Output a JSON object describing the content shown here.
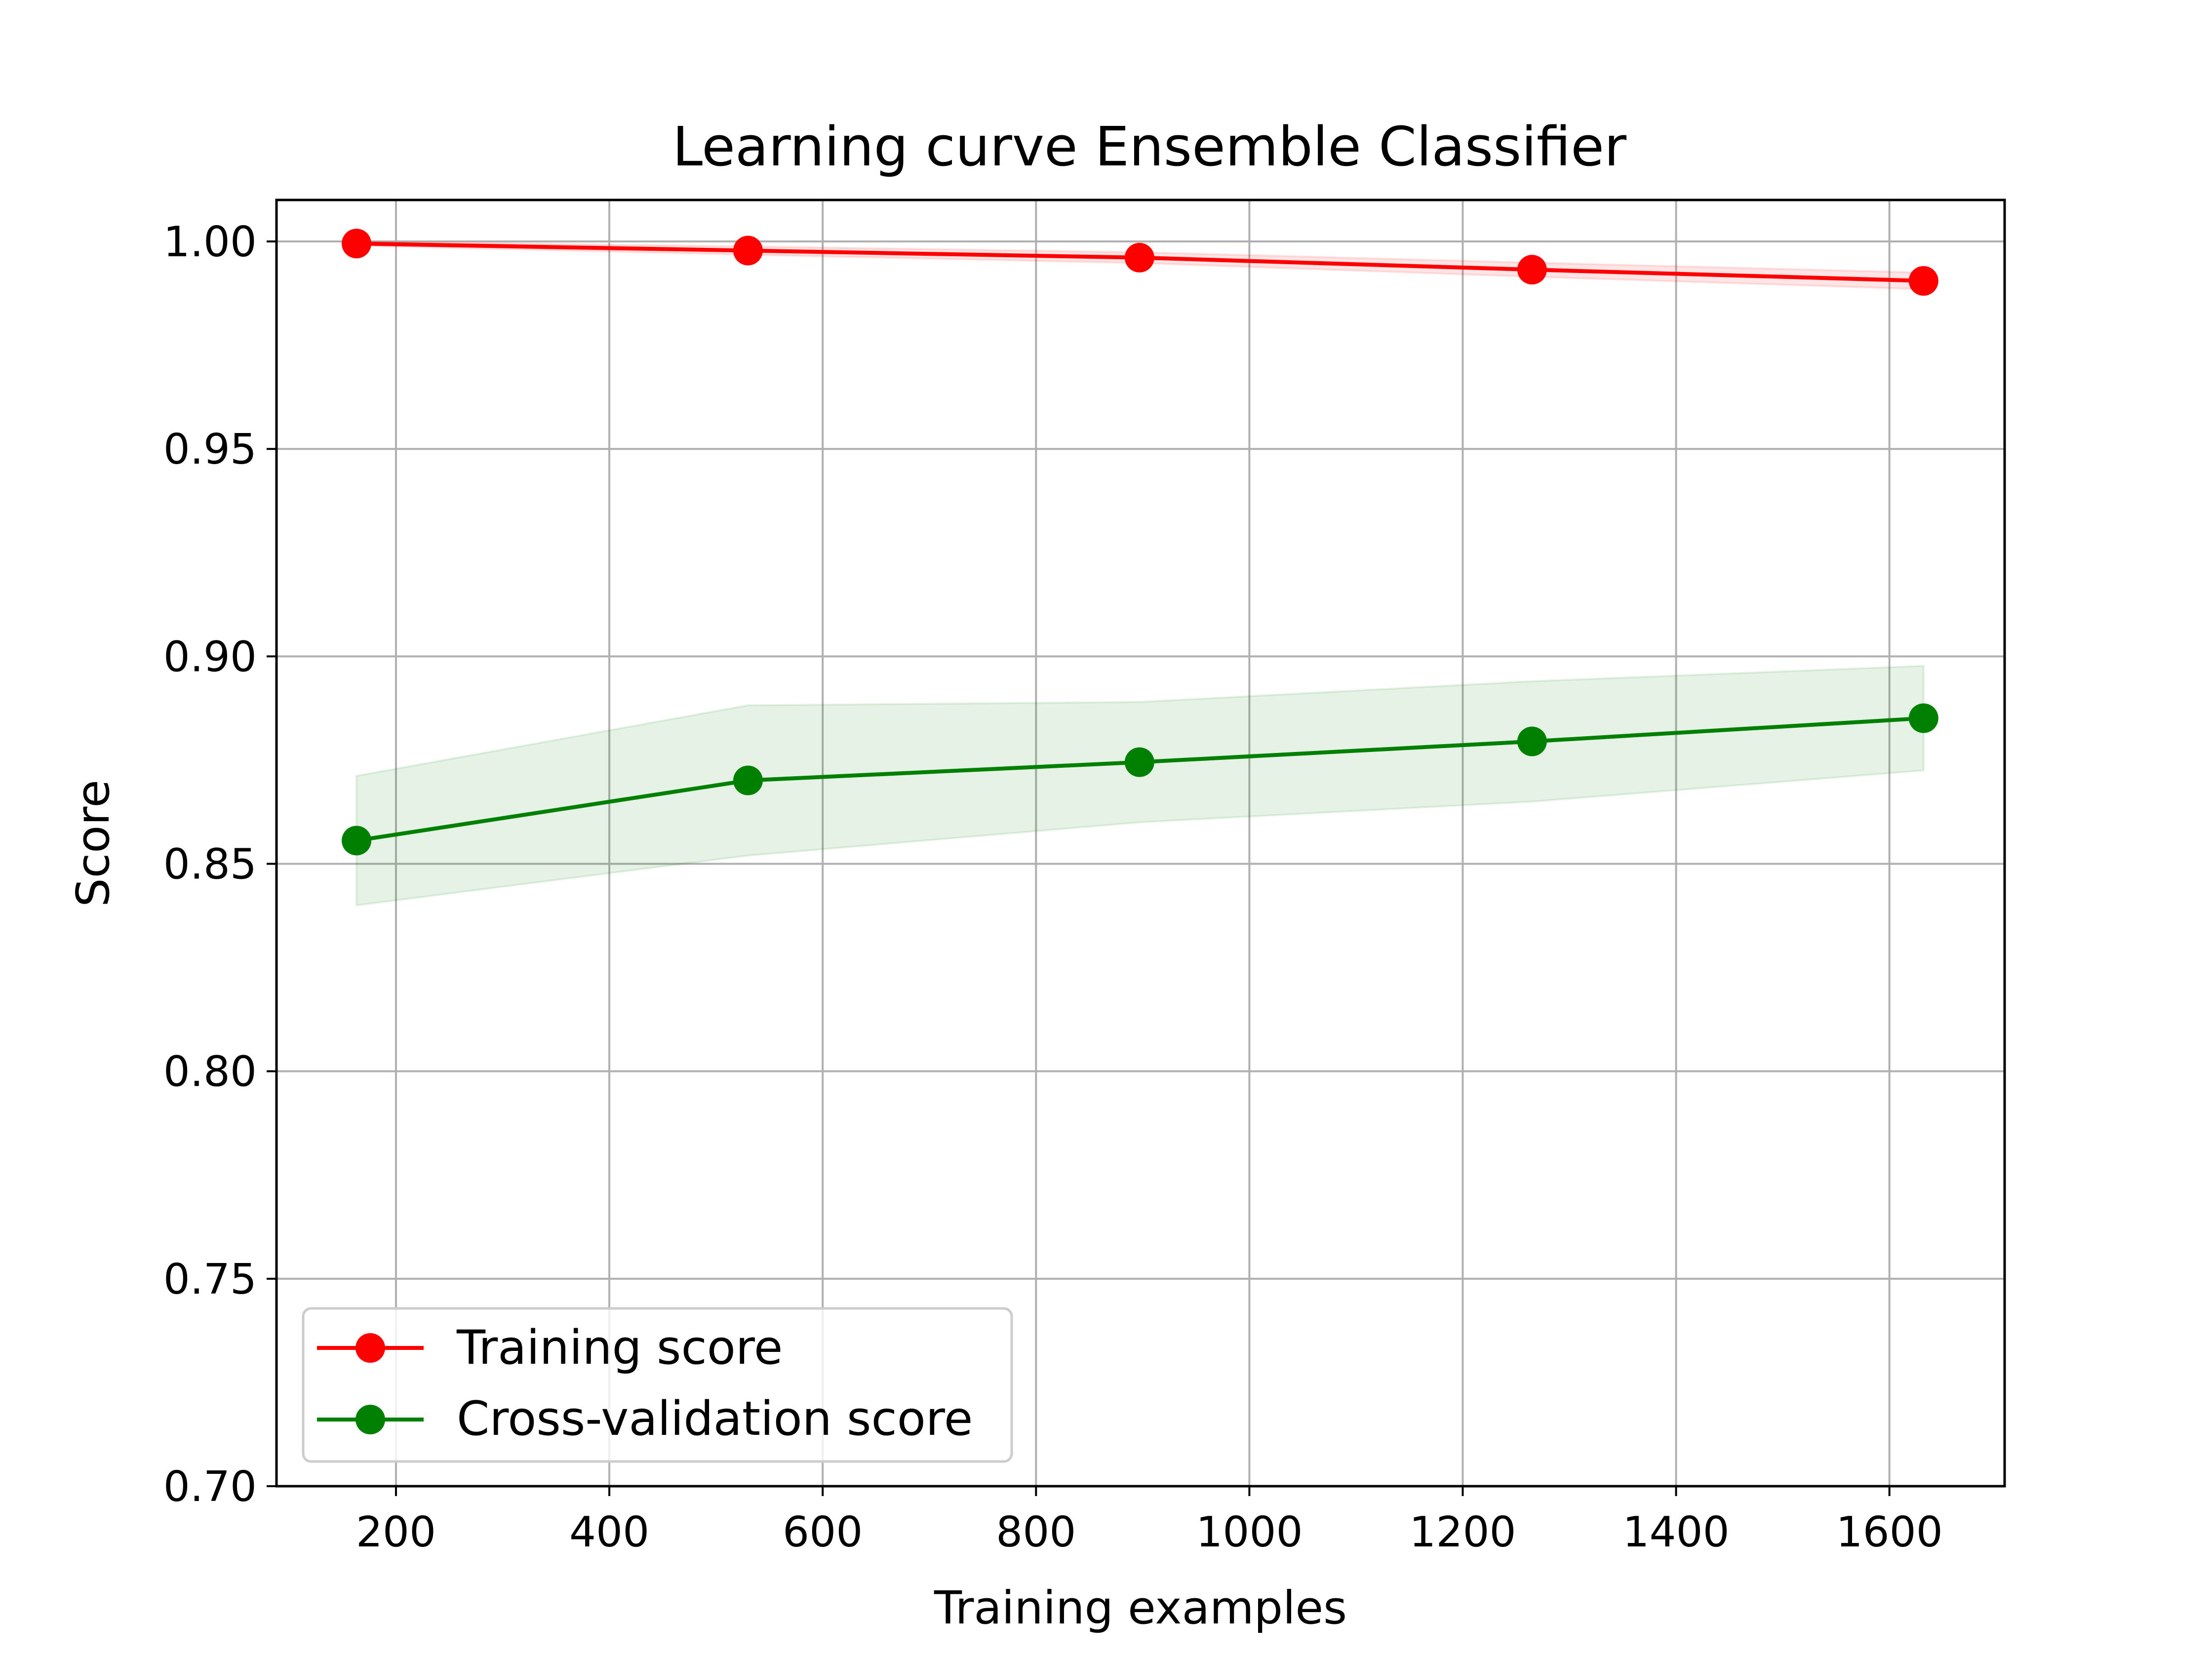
{
  "chart_data": {
    "type": "line",
    "title": "Learning curve Ensemble Classifier",
    "xlabel": "Training examples",
    "ylabel": "Score",
    "xlim": [
      88,
      1708
    ],
    "ylim": [
      0.7,
      1.01
    ],
    "xticks": [
      200,
      400,
      600,
      800,
      1000,
      1200,
      1400,
      1600
    ],
    "xtick_labels": [
      "200",
      "400",
      "600",
      "800",
      "1000",
      "1200",
      "1400",
      "1600"
    ],
    "yticks": [
      0.7,
      0.75,
      0.8,
      0.85,
      0.9,
      0.95,
      1.0
    ],
    "ytick_labels": [
      "0.70",
      "0.75",
      "0.80",
      "0.85",
      "0.90",
      "0.95",
      "1.00"
    ],
    "grid": true,
    "legend_position": "lower-left",
    "x": [
      163,
      530,
      897,
      1265,
      1632
    ],
    "series": [
      {
        "name": "Training score",
        "color": "#ff0000",
        "values": [
          0.9995,
          0.9978,
          0.9961,
          0.9932,
          0.9905
        ],
        "band_lower": [
          0.999,
          0.9968,
          0.9948,
          0.9915,
          0.9885
        ],
        "band_upper": [
          1.0,
          0.9988,
          0.9974,
          0.9949,
          0.9925
        ]
      },
      {
        "name": "Cross-validation score",
        "color": "#008000",
        "values": [
          0.8556,
          0.8701,
          0.8745,
          0.8795,
          0.8851
        ],
        "band_lower": [
          0.84,
          0.852,
          0.86,
          0.865,
          0.8725
        ],
        "band_upper": [
          0.8712,
          0.8882,
          0.889,
          0.894,
          0.8977
        ]
      }
    ]
  }
}
